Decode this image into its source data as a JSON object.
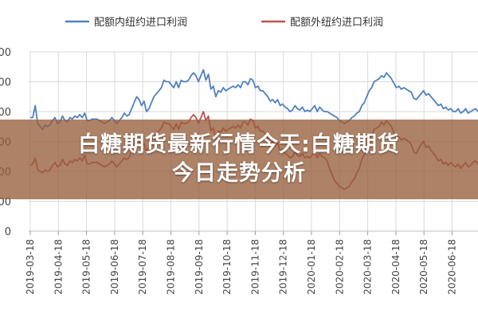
{
  "banner": {
    "line1": "白糖期货最新行情今天:白糖期货",
    "line2": "今日走势分析"
  },
  "colors": {
    "inner_series": "#4F81BD",
    "outer_series": "#C0504D",
    "banner_bg": "#965F3C"
  },
  "chart_data": {
    "type": "line",
    "title": "",
    "legend_position": "top",
    "grid": {
      "horizontal": true,
      "vertical": true
    },
    "y_ticks": [
      "000",
      "000",
      "000",
      "000",
      "000",
      "000",
      "0"
    ],
    "ylim": [
      0,
      6000
    ],
    "x_ticks": [
      "2019-03-18",
      "2019-04-18",
      "2019-05-18",
      "2019-06-18",
      "2019-07-18",
      "2019-08-18",
      "2019-09-18",
      "2019-10-18",
      "2019-11-18",
      "2019-12-18",
      "2020-01-18",
      "2020-02-18",
      "2020-03-18",
      "2020-04-18",
      "2020-05-18",
      "2020-06-18"
    ],
    "series": [
      {
        "name": "配额内纽约进口利润",
        "color": "#4F81BD",
        "values": [
          3800,
          3800,
          4200,
          3600,
          3500,
          3400,
          3550,
          3500,
          3550,
          3700,
          3800,
          3600,
          3650,
          3850,
          3700,
          3650,
          3800,
          3750,
          3850,
          3800,
          3900,
          3800,
          3950,
          3700,
          3700,
          3750,
          3750,
          3750,
          3700,
          3650,
          3600,
          3650,
          3700,
          3800,
          3700,
          3600,
          3700,
          3800,
          3950,
          3850,
          3900,
          4100,
          4300,
          4500,
          4400,
          4200,
          4350,
          4000,
          4100,
          4300,
          4500,
          4600,
          4700,
          4800,
          5050,
          5000,
          5000,
          4900,
          4800,
          5000,
          4800,
          5050,
          5000,
          5000,
          5050,
          5200,
          5300,
          5200,
          5000,
          5200,
          5400,
          5050,
          5250,
          4750,
          4850,
          4500,
          4700,
          4650,
          4800,
          4700,
          4750,
          4800,
          4850,
          4800,
          4900,
          4800,
          5000,
          5000,
          4900,
          5100,
          5050,
          4800,
          4850,
          4700,
          4700,
          4600,
          4500,
          4350,
          4400,
          4300,
          4400,
          4200,
          4250,
          4150,
          4100,
          4000,
          4050,
          4200,
          4100,
          4050,
          4150,
          4000,
          4050,
          4000,
          4100,
          4200,
          4000,
          4150,
          4050,
          4000,
          4000,
          3950,
          3900,
          3850,
          3800,
          3700,
          3650,
          3600,
          3650,
          3700,
          3800,
          3850,
          3950,
          4000,
          4200,
          4300,
          4500,
          4700,
          4800,
          5000,
          5050,
          5100,
          5200,
          5150,
          5300,
          5200,
          5100,
          4950,
          4800,
          4850,
          4750,
          4800,
          4750,
          4700,
          4650,
          4450,
          4400,
          4500,
          4600,
          4700,
          4550,
          4600,
          4500,
          4400,
          4300,
          4200,
          4250,
          4100,
          4150,
          4050,
          4100,
          4000,
          4000,
          4100,
          3950,
          4000,
          4100,
          3950,
          4000,
          4050,
          4100,
          4000
        ]
      },
      {
        "name": "配额外纽约进口利润",
        "color": "#C0504D",
        "values": [
          2200,
          2250,
          2450,
          2050,
          2000,
          1950,
          2050,
          2000,
          2050,
          2200,
          2300,
          2150,
          2200,
          2400,
          2250,
          2200,
          2350,
          2300,
          2400,
          2350,
          2450,
          2350,
          2550,
          2250,
          2250,
          2300,
          2300,
          2300,
          2250,
          2200,
          2150,
          2200,
          2250,
          2350,
          2250,
          2150,
          2250,
          2350,
          2450,
          2400,
          2450,
          2700,
          2900,
          3100,
          3000,
          2800,
          2950,
          2650,
          2800,
          3000,
          3150,
          3250,
          3350,
          3450,
          3650,
          3600,
          3600,
          3500,
          3400,
          3600,
          3400,
          3650,
          3600,
          3600,
          3650,
          3800,
          3900,
          3800,
          3600,
          3800,
          4000,
          3700,
          3850,
          3350,
          3450,
          3100,
          3350,
          3300,
          3450,
          3350,
          3400,
          3450,
          3500,
          3450,
          3550,
          3450,
          3650,
          3650,
          3550,
          3750,
          3700,
          3450,
          3500,
          3350,
          3350,
          3250,
          3100,
          2900,
          3000,
          2850,
          2950,
          2700,
          2750,
          2600,
          2550,
          2450,
          2500,
          2650,
          2550,
          2500,
          2600,
          2450,
          2500,
          2450,
          2550,
          2650,
          2450,
          2600,
          2500,
          2450,
          2350,
          2100,
          1900,
          1700,
          1600,
          1500,
          1450,
          1400,
          1450,
          1500,
          1650,
          1750,
          1950,
          2100,
          2400,
          2550,
          2850,
          3100,
          3200,
          3400,
          3450,
          3500,
          3650,
          3550,
          3700,
          3600,
          3500,
          3300,
          3100,
          3150,
          3050,
          3100,
          3050,
          3000,
          2900,
          2650,
          2600,
          2750,
          2900,
          3000,
          2800,
          2850,
          2700,
          2600,
          2500,
          2350,
          2400,
          2250,
          2300,
          2200,
          2300,
          2200,
          2150,
          2250,
          2100,
          2200,
          2300,
          2150,
          2200,
          2300,
          2350,
          2250
        ]
      }
    ]
  }
}
